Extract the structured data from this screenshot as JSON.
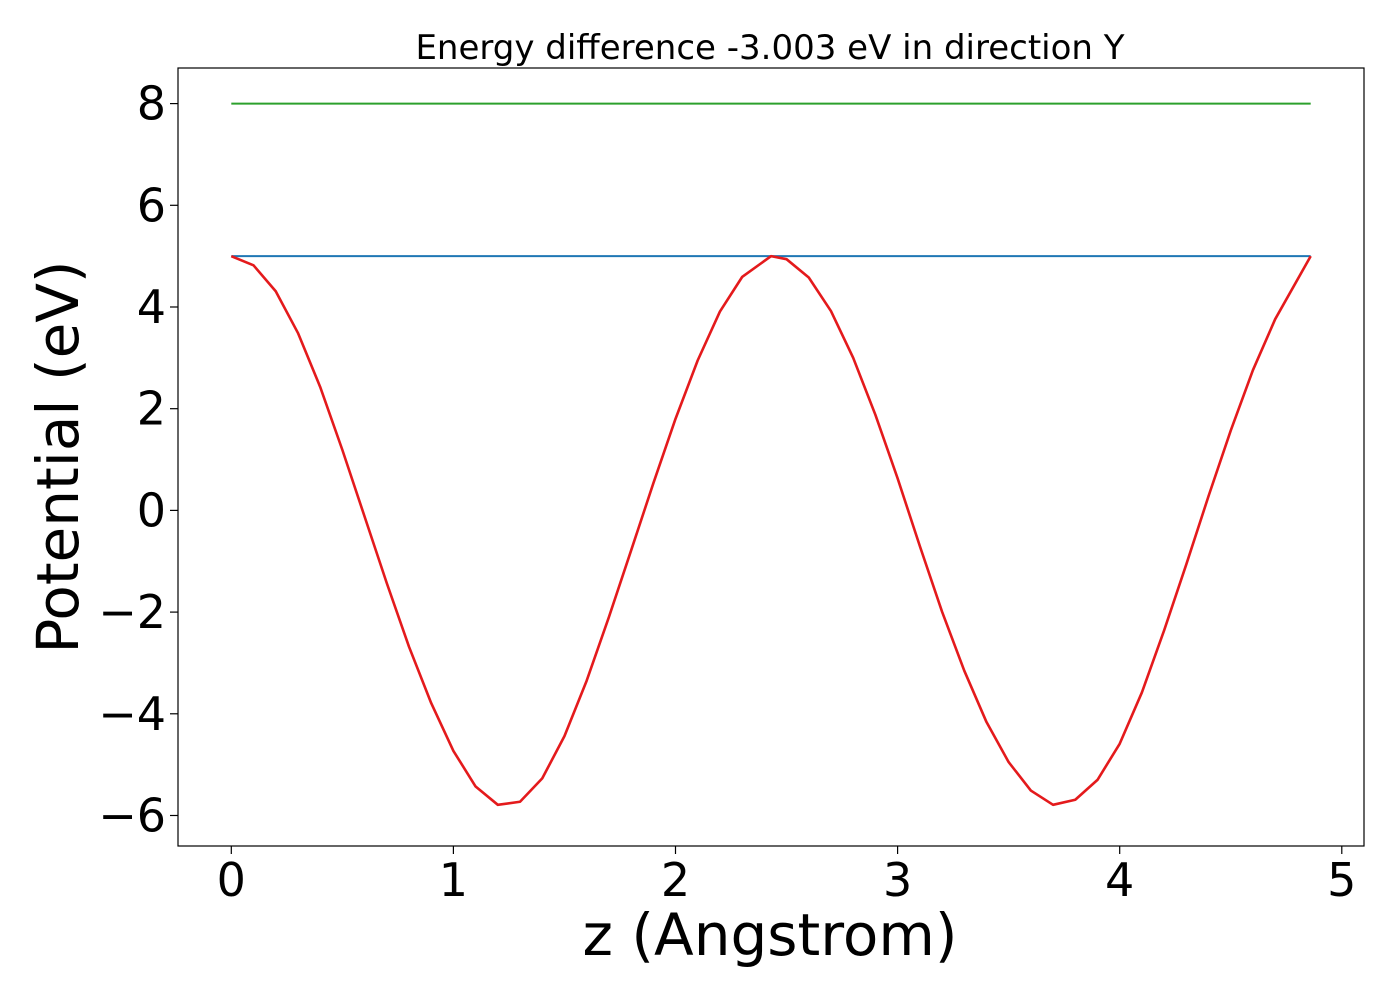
{
  "chart_data": {
    "type": "line",
    "title": "Energy difference -3.003 eV in direction Y",
    "xlabel": "z (Angstrom)",
    "ylabel": "Potential (eV)",
    "xlim": [
      -0.24,
      5.1
    ],
    "ylim": [
      -6.6,
      8.7
    ],
    "xticks": [
      0,
      1,
      2,
      3,
      4,
      5
    ],
    "yticks": [
      -6,
      -4,
      -2,
      0,
      2,
      4,
      6,
      8
    ],
    "xtick_labels": [
      "0",
      "1",
      "2",
      "3",
      "4",
      "5"
    ],
    "ytick_labels": [
      "−6",
      "−4",
      "−2",
      "0",
      "2",
      "4",
      "6",
      "8"
    ],
    "grid": false,
    "legend": "none",
    "series": [
      {
        "color": "#2ca02c",
        "x": [
          0,
          4.86
        ],
        "y": [
          8.0,
          8.0
        ]
      },
      {
        "color": "#1f77b4",
        "x": [
          0,
          4.86
        ],
        "y": [
          5.0,
          5.0
        ]
      },
      {
        "color": "#e41a1c",
        "x": [
          0.0,
          0.1,
          0.2,
          0.3,
          0.4,
          0.5,
          0.6,
          0.7,
          0.8,
          0.9,
          1.0,
          1.1,
          1.2,
          1.3,
          1.4,
          1.5,
          1.6,
          1.7,
          1.8,
          1.9,
          2.0,
          2.1,
          2.2,
          2.3,
          2.43,
          2.5,
          2.6,
          2.7,
          2.8,
          2.9,
          3.0,
          3.1,
          3.2,
          3.3,
          3.4,
          3.5,
          3.6,
          3.7,
          3.8,
          3.9,
          4.0,
          4.1,
          4.2,
          4.3,
          4.4,
          4.5,
          4.6,
          4.7,
          4.86
        ],
        "y": [
          5.0,
          4.82,
          4.31,
          3.49,
          2.43,
          1.19,
          -0.12,
          -1.43,
          -2.68,
          -3.79,
          -4.73,
          -5.43,
          -5.79,
          -5.73,
          -5.27,
          -4.44,
          -3.35,
          -2.1,
          -0.79,
          0.53,
          1.8,
          2.95,
          3.91,
          4.59,
          5.0,
          4.94,
          4.58,
          3.92,
          3.0,
          1.88,
          0.63,
          -0.7,
          -1.99,
          -3.15,
          -4.16,
          -4.95,
          -5.51,
          -5.79,
          -5.69,
          -5.3,
          -4.59,
          -3.58,
          -2.36,
          -1.06,
          0.28,
          1.57,
          2.76,
          3.76,
          5.0
        ]
      }
    ]
  }
}
